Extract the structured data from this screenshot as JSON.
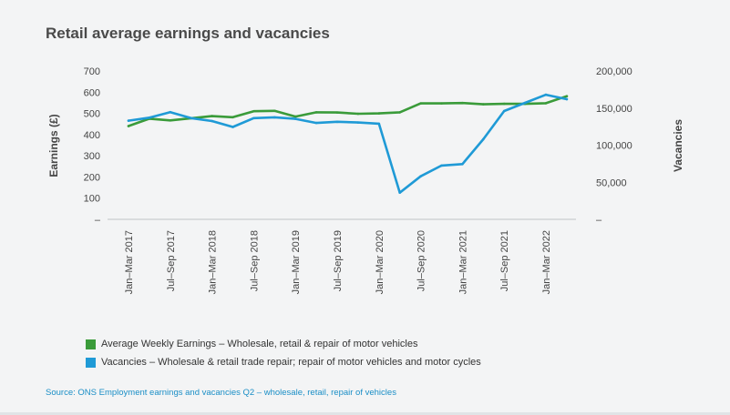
{
  "title": "Retail average earnings and vacancies",
  "source": "Source: ONS Employment earnings and vacancies Q2 – wholesale, retail, repair of vehicles",
  "colors": {
    "earnings": "#3a9b3a",
    "vacancies": "#1f9ad6"
  },
  "chart_data": {
    "type": "line",
    "title": "Retail average earnings and vacancies",
    "ylabel": "Earnings (£)",
    "y2label": "Vacancies",
    "ylim": [
      0,
      700
    ],
    "y2lim": [
      0,
      200000
    ],
    "y_ticks": [
      "–",
      "100",
      "200",
      "300",
      "400",
      "500",
      "600",
      "700"
    ],
    "y2_ticks": [
      "–",
      "50,000",
      "100,000",
      "150,000",
      "200,000"
    ],
    "x_tick_labels": [
      "Jan–Mar 2017",
      "Jul–Sep 2017",
      "Jan–Mar 2018",
      "Jul–Sep 2018",
      "Jan–Mar 2019",
      "Jul–Sep 2019",
      "Jan–Mar 2020",
      "Jul–Sep 2020",
      "Jan–Mar 2021",
      "Jul–Sep 2021",
      "Jan–Mar 2022"
    ],
    "categories": [
      "Jan–Mar 2017",
      "Apr–Jun 2017",
      "Jul–Sep 2017",
      "Oct–Dec 2017",
      "Jan–Mar 2018",
      "Apr–Jun 2018",
      "Jul–Sep 2018",
      "Oct–Dec 2018",
      "Jan–Mar 2019",
      "Apr–Jun 2019",
      "Jul–Sep 2019",
      "Oct–Dec 2019",
      "Jan–Mar 2020",
      "Apr–Jun 2020",
      "Jul–Sep 2020",
      "Oct–Dec 2020",
      "Jan–Mar 2021",
      "Apr–Jun 2021",
      "Jul–Sep 2021",
      "Oct–Dec 2021",
      "Jan–Mar 2022",
      "Apr–Jun 2022"
    ],
    "series": [
      {
        "name": "Average Weekly Earnings – Wholesale, retail & repair of motor vehicles",
        "axis": "left",
        "values": [
          440,
          475,
          467,
          477,
          487,
          482,
          510,
          512,
          485,
          505,
          504,
          498,
          500,
          505,
          547,
          547,
          549,
          543,
          545,
          545,
          548,
          581
        ]
      },
      {
        "name": "Vacancies – Wholesale & retail trade repair; repair of motor vehicles and motor cycles",
        "axis": "right",
        "values": [
          133000,
          137000,
          144500,
          136500,
          132500,
          124500,
          136500,
          137500,
          135500,
          130000,
          131500,
          130500,
          129000,
          36000,
          58000,
          72500,
          74500,
          108000,
          146000,
          157000,
          168000,
          162000
        ]
      }
    ],
    "grid": false,
    "legend": "bottom"
  }
}
